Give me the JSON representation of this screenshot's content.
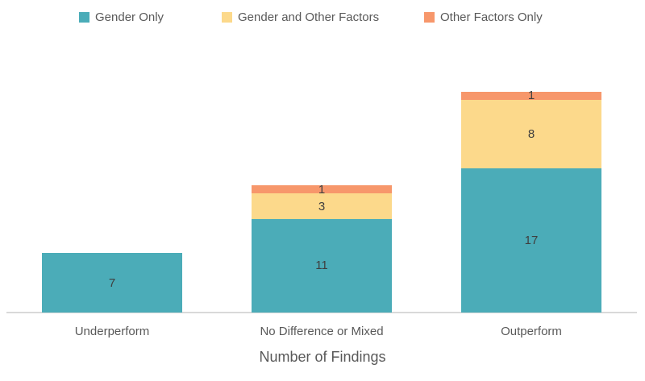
{
  "chart_data": {
    "type": "bar",
    "stacked": true,
    "title": "",
    "xlabel": "Number of Findings",
    "ylabel": "",
    "categories": [
      "Underperform",
      "No Difference or Mixed",
      "Outperform"
    ],
    "series": [
      {
        "name": "Gender Only",
        "color": "#4BACB8",
        "values": [
          7,
          11,
          17
        ]
      },
      {
        "name": "Gender and Other Factors",
        "color": "#FCD98B",
        "values": [
          0,
          3,
          8
        ]
      },
      {
        "name": "Other Factors Only",
        "color": "#F7976B",
        "values": [
          0,
          1,
          1
        ]
      }
    ],
    "category_totals": [
      7,
      15,
      26
    ],
    "data_labels": [
      [
        "7"
      ],
      [
        "11",
        "3",
        "1"
      ],
      [
        "17",
        "8",
        "1"
      ]
    ],
    "legend_position": "top",
    "grid": false,
    "ylim": [
      0,
      26
    ]
  },
  "colors": {
    "background": "#FFFFFF",
    "axis_line": "#D9D9D9",
    "text": "#595959",
    "data_label": "#3F3F3F"
  }
}
